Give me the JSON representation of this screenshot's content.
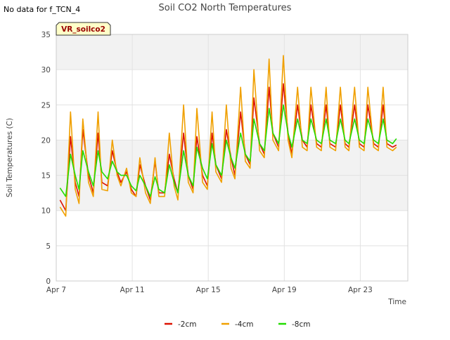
{
  "note": "No data for f_TCN_4",
  "chart_data": {
    "type": "line",
    "title": "Soil CO2 North Temperatures",
    "xlabel": "Time",
    "ylabel": "Soil Temperatures (C)",
    "ylim": [
      0,
      35
    ],
    "yticks": [
      0,
      5,
      10,
      15,
      20,
      25,
      30,
      35
    ],
    "xlim_days": [
      7,
      25.5
    ],
    "x_tick_labels": [
      "Apr 7",
      "Apr 11",
      "Apr 15",
      "Apr 19",
      "Apr 23"
    ],
    "x_tick_days": [
      7,
      11,
      15,
      19,
      23
    ],
    "grid": true,
    "shaded_bands": [
      [
        10,
        20
      ],
      [
        30,
        35
      ]
    ],
    "site_label": "VR_soilco2",
    "legend_position": "bottom",
    "x_days": [
      7.2,
      7.5,
      7.75,
      8.0,
      8.2,
      8.4,
      8.7,
      8.95,
      9.2,
      9.4,
      9.7,
      9.95,
      10.2,
      10.4,
      10.7,
      10.95,
      11.2,
      11.4,
      11.7,
      11.95,
      12.2,
      12.4,
      12.7,
      12.95,
      13.2,
      13.4,
      13.7,
      13.95,
      14.2,
      14.4,
      14.7,
      14.95,
      15.2,
      15.4,
      15.7,
      15.95,
      16.2,
      16.4,
      16.7,
      16.95,
      17.2,
      17.4,
      17.7,
      17.95,
      18.2,
      18.4,
      18.7,
      18.95,
      19.2,
      19.4,
      19.7,
      19.95,
      20.2,
      20.4,
      20.7,
      20.95,
      21.2,
      21.4,
      21.7,
      21.95,
      22.2,
      22.4,
      22.7,
      22.95,
      23.2,
      23.4,
      23.7,
      23.95,
      24.2,
      24.4,
      24.7,
      24.9
    ],
    "series": [
      {
        "name": "-2cm",
        "color": "#dd1100",
        "values": [
          11.5,
          10.0,
          20.5,
          14.0,
          12.0,
          21.5,
          15.0,
          12.5,
          21.0,
          14.0,
          13.5,
          18.5,
          15.5,
          14.0,
          15.5,
          13.0,
          12.0,
          16.5,
          13.5,
          11.5,
          17.0,
          12.5,
          12.5,
          18.0,
          14.5,
          12.5,
          21.0,
          15.0,
          13.0,
          20.5,
          15.0,
          13.5,
          21.0,
          16.5,
          14.5,
          21.5,
          17.5,
          15.0,
          24.0,
          18.0,
          16.5,
          26.0,
          19.5,
          18.0,
          27.5,
          21.0,
          19.0,
          28.0,
          21.0,
          18.0,
          25.0,
          20.0,
          19.0,
          25.0,
          19.5,
          19.0,
          25.0,
          19.5,
          19.0,
          25.0,
          19.5,
          19.0,
          25.0,
          19.5,
          19.0,
          25.0,
          19.5,
          19.0,
          25.0,
          19.5,
          19.0,
          19.3
        ]
      },
      {
        "name": "-4cm",
        "color": "#f0a000",
        "values": [
          10.5,
          9.2,
          24.0,
          13.0,
          11.0,
          23.0,
          14.0,
          12.0,
          24.0,
          13.0,
          12.8,
          20.0,
          15.0,
          13.5,
          16.0,
          12.5,
          12.0,
          17.5,
          12.5,
          11.0,
          17.5,
          12.0,
          12.0,
          21.0,
          13.5,
          11.5,
          25.0,
          14.0,
          12.5,
          24.5,
          14.0,
          13.0,
          24.0,
          15.5,
          14.0,
          25.0,
          16.0,
          14.5,
          27.5,
          17.0,
          16.0,
          30.0,
          18.5,
          17.5,
          31.5,
          20.0,
          18.5,
          32.0,
          20.0,
          17.5,
          27.5,
          19.0,
          18.5,
          27.5,
          19.0,
          18.5,
          27.5,
          19.0,
          18.5,
          27.5,
          19.0,
          18.5,
          27.5,
          19.0,
          18.5,
          27.5,
          19.0,
          18.5,
          27.5,
          19.0,
          18.5,
          19.0
        ]
      },
      {
        "name": "-8cm",
        "color": "#22dd00",
        "values": [
          13.2,
          12.0,
          18.0,
          15.0,
          13.0,
          18.5,
          15.5,
          13.5,
          18.5,
          15.5,
          14.5,
          17.0,
          15.5,
          15.0,
          15.0,
          13.5,
          12.8,
          15.0,
          13.5,
          12.0,
          14.8,
          13.0,
          12.5,
          16.5,
          14.0,
          12.5,
          18.5,
          15.0,
          13.5,
          19.0,
          16.0,
          14.5,
          19.5,
          16.5,
          15.0,
          20.0,
          17.5,
          16.0,
          21.0,
          18.0,
          17.0,
          23.0,
          19.5,
          18.5,
          24.5,
          21.0,
          19.5,
          25.0,
          21.0,
          19.0,
          23.0,
          20.0,
          19.5,
          23.0,
          20.0,
          19.5,
          23.0,
          20.0,
          19.5,
          23.0,
          20.0,
          19.5,
          23.0,
          20.0,
          19.5,
          23.0,
          20.0,
          19.5,
          23.0,
          20.0,
          19.5,
          20.2
        ]
      }
    ]
  }
}
